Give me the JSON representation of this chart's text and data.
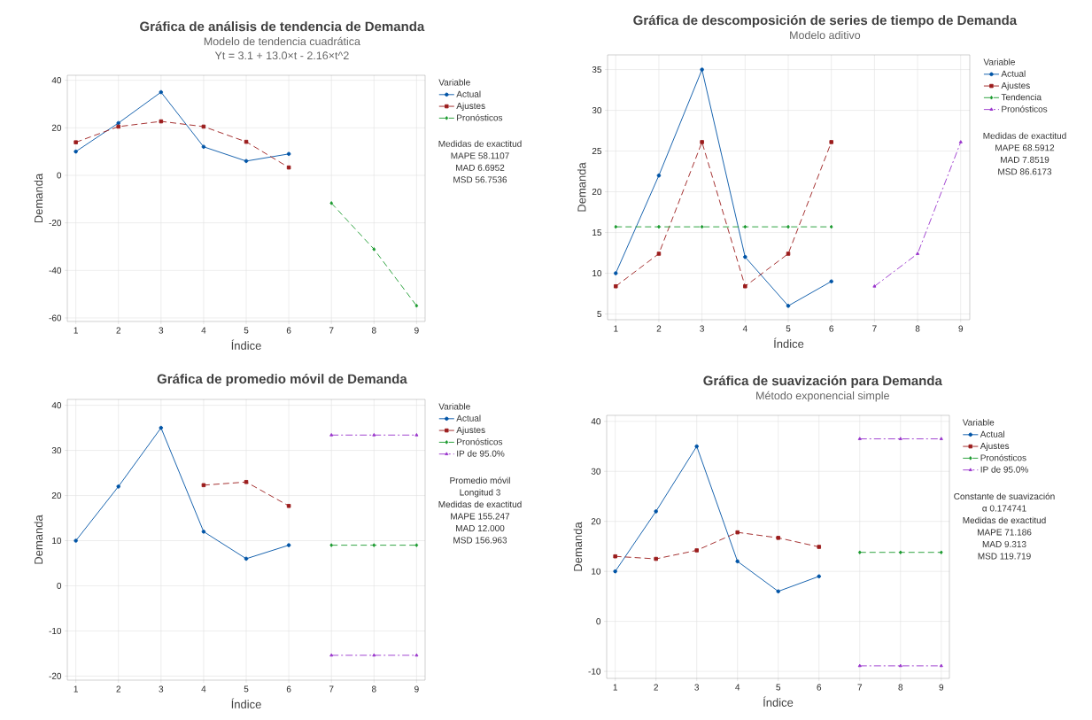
{
  "chart_data": [
    {
      "type": "line",
      "title": "Gráfica de análisis de tendencia de Demanda",
      "subtitle": [
        "Modelo de tendencia cuadrática",
        "Yt = 3.1 + 13.0×t - 2.16×t^2"
      ],
      "xlabel": "Índice",
      "ylabel": "Demanda",
      "legend_title": "Variable",
      "legend": "right",
      "grid": true,
      "xlim": [
        0.8,
        9.2
      ],
      "xticks": [
        1,
        2,
        3,
        4,
        5,
        6,
        7,
        8,
        9
      ],
      "ylim": [
        -61.5,
        42.1
      ],
      "yticks": [
        -60,
        -40,
        -20,
        0,
        20,
        40
      ],
      "series": [
        {
          "name": "Actual",
          "color": "#0054a6",
          "marker": "circle",
          "line_style": "solid",
          "x": [
            1,
            2,
            3,
            4,
            5,
            6
          ],
          "values": [
            10,
            22,
            35,
            12,
            6,
            9
          ]
        },
        {
          "name": "Ajustes",
          "color": "#9b1c1c",
          "marker": "square",
          "line_style": "dashed",
          "x": [
            1,
            2,
            3,
            4,
            5,
            6
          ],
          "values": [
            13.9,
            20.5,
            22.7,
            20.5,
            14.1,
            3.3
          ]
        },
        {
          "name": "Pronósticos",
          "color": "#1a9a2e",
          "marker": "diamond",
          "line_style": "dashed",
          "x": [
            7,
            8,
            9
          ],
          "values": [
            -11.7,
            -31.1,
            -54.9
          ]
        }
      ],
      "annotations": [
        "Medidas de exactitud",
        "MAPE 58.1107",
        "MAD 6.6952",
        "MSD 56.7536"
      ]
    },
    {
      "type": "line",
      "title": "Gráfica de descomposición de series de tiempo de Demanda",
      "subtitle": [
        "Modelo aditivo"
      ],
      "xlabel": "Índice",
      "ylabel": "Demanda",
      "legend_title": "Variable",
      "legend": "right",
      "grid": true,
      "xlim": [
        0.81,
        9.21
      ],
      "xticks": [
        1,
        2,
        3,
        4,
        5,
        6,
        7,
        8,
        9
      ],
      "ylim": [
        4.3,
        36.8
      ],
      "yticks": [
        5,
        10,
        15,
        20,
        25,
        30,
        35
      ],
      "series": [
        {
          "name": "Actual",
          "color": "#0054a6",
          "marker": "circle",
          "line_style": "solid",
          "x": [
            1,
            2,
            3,
            4,
            5,
            6
          ],
          "values": [
            10,
            22,
            35,
            12,
            6,
            9
          ]
        },
        {
          "name": "Ajustes",
          "color": "#9b1c1c",
          "marker": "square",
          "line_style": "dashed",
          "x": [
            1,
            2,
            3,
            4,
            5,
            6
          ],
          "values": [
            8.4,
            12.4,
            26.1,
            8.4,
            12.4,
            26.1
          ]
        },
        {
          "name": "Tendencia",
          "color": "#1a9a2e",
          "marker": "diamond",
          "line_style": "dashed",
          "x": [
            1,
            2,
            3,
            4,
            5,
            6
          ],
          "values": [
            15.7,
            15.7,
            15.7,
            15.7,
            15.7,
            15.7
          ]
        },
        {
          "name": "Pronósticos",
          "color": "#9933cc",
          "marker": "triangle",
          "line_style": "dashdot",
          "x": [
            7,
            8,
            9
          ],
          "values": [
            8.4,
            12.4,
            26.1
          ]
        }
      ],
      "annotations": [
        "Medidas de exactitud",
        "MAPE 68.5912",
        "MAD 7.8519",
        "MSD 86.6173"
      ]
    },
    {
      "type": "line",
      "title": "Gráfica de promedio móvil de Demanda",
      "xlabel": "Índice",
      "ylabel": "Demanda",
      "legend_title": "Variable",
      "legend": "right",
      "grid": true,
      "xlim": [
        0.8,
        9.2
      ],
      "xticks": [
        1,
        2,
        3,
        4,
        5,
        6,
        7,
        8,
        9
      ],
      "ylim": [
        -20.9,
        41.3
      ],
      "yticks": [
        -20,
        -10,
        0,
        10,
        20,
        30,
        40
      ],
      "series": [
        {
          "name": "Actual",
          "color": "#0054a6",
          "marker": "circle",
          "line_style": "solid",
          "x": [
            1,
            2,
            3,
            4,
            5,
            6
          ],
          "values": [
            10,
            22,
            35,
            12,
            6,
            9
          ]
        },
        {
          "name": "Ajustes",
          "color": "#9b1c1c",
          "marker": "square",
          "line_style": "dashed",
          "x": [
            4,
            5,
            6
          ],
          "values": [
            22.3,
            23,
            17.7
          ]
        },
        {
          "name": "Pronósticos",
          "color": "#1a9a2e",
          "marker": "diamond",
          "line_style": "dashed",
          "x": [
            7,
            8,
            9
          ],
          "values": [
            9,
            9,
            9
          ]
        },
        {
          "name": "IP de 95.0%",
          "color": "#9933cc",
          "marker": "triangle",
          "line_style": "dashdot",
          "x": [
            7,
            8,
            9
          ],
          "values": [
            33.4,
            33.4,
            33.4
          ]
        },
        {
          "color": "#9933cc",
          "marker": "triangle",
          "line_style": "dashdot",
          "x": [
            7,
            8,
            9
          ],
          "values": [
            -15.4,
            -15.4,
            -15.4
          ]
        }
      ],
      "annotations": [
        "Promedio móvil",
        "Longitud 3",
        "Medidas de exactitud",
        "MAPE 155.247",
        "MAD 12.000",
        "MSD 156.963"
      ]
    },
    {
      "type": "line",
      "title": "Gráfica de suavización  para Demanda",
      "subtitle": [
        "Método exponencial simple"
      ],
      "xlabel": "Índice",
      "ylabel": "Demanda",
      "legend_title": "Variable",
      "legend": "right",
      "grid": true,
      "xlim": [
        0.79,
        9.2
      ],
      "xticks": [
        1,
        2,
        3,
        4,
        5,
        6,
        7,
        8,
        9
      ],
      "ylim": [
        -11.4,
        41.2
      ],
      "yticks": [
        -10,
        0,
        10,
        20,
        30,
        40
      ],
      "series": [
        {
          "name": "Actual",
          "color": "#0054a6",
          "marker": "circle",
          "line_style": "solid",
          "x": [
            1,
            2,
            3,
            4,
            5,
            6
          ],
          "values": [
            10,
            22,
            35,
            12,
            6,
            9
          ]
        },
        {
          "name": "Ajustes",
          "color": "#9b1c1c",
          "marker": "square",
          "line_style": "dashed",
          "x": [
            1,
            2,
            3,
            4,
            5,
            6
          ],
          "values": [
            13.0,
            12.5,
            14.2,
            17.8,
            16.7,
            14.9
          ]
        },
        {
          "name": "Pronósticos",
          "color": "#1a9a2e",
          "marker": "diamond",
          "line_style": "dashed",
          "x": [
            7,
            8,
            9
          ],
          "values": [
            13.8,
            13.8,
            13.8
          ]
        },
        {
          "name": "IP de 95.0%",
          "color": "#9933cc",
          "marker": "triangle",
          "line_style": "dashdot",
          "x": [
            7,
            8,
            9
          ],
          "values": [
            36.5,
            36.5,
            36.5
          ]
        },
        {
          "color": "#9933cc",
          "marker": "triangle",
          "line_style": "dashdot",
          "x": [
            7,
            8,
            9
          ],
          "values": [
            -8.9,
            -8.9,
            -8.9
          ]
        }
      ],
      "annotations": [
        "Constante de suavización",
        "α 0.174741",
        "Medidas de exactitud",
        "MAPE 71.186",
        "MAD 9.313",
        "MSD 119.719"
      ]
    }
  ]
}
